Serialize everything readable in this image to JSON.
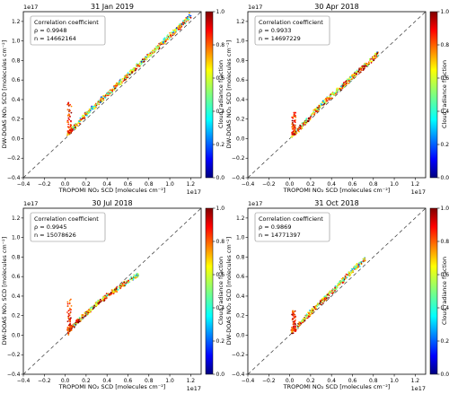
{
  "shared": {
    "xlabel": "TROPOMI NO₂ SCD [molecules cm⁻²]",
    "ylabel": "DW-DOAS NO₂ SCD [molecules cm⁻²]",
    "exponent_label": "1e17",
    "colorbar_label": "Cloud radiance fraction",
    "colorbar_ticks": [
      "0.0",
      "0.2",
      "0.4",
      "0.6",
      "0.8",
      "1.0"
    ],
    "stats_title": "Correlation coefficient",
    "x_ticks": [
      "−0.4",
      "−0.2",
      "0.0",
      "0.2",
      "0.4",
      "0.6",
      "0.8",
      "1.0",
      "1.2"
    ],
    "y_ticks": [
      "−0.4",
      "−0.2",
      "0.0",
      "0.2",
      "0.4",
      "0.6",
      "0.8",
      "1.0",
      "1.2"
    ],
    "colors": {
      "reference_line": "#333333"
    }
  },
  "chart_data": [
    {
      "type": "scatter",
      "title": "31 Jan 2019",
      "rho_text": "ρ = 0.9948",
      "n_text": "n = 14662164",
      "xlim": [
        -0.4,
        1.3
      ],
      "ylim": [
        -0.4,
        1.3
      ],
      "trend": [
        [
          0.02,
          0.03
        ],
        [
          0.1,
          0.13
        ],
        [
          0.2,
          0.25
        ],
        [
          0.4,
          0.45
        ],
        [
          0.6,
          0.65
        ],
        [
          0.8,
          0.85
        ],
        [
          1.0,
          1.05
        ],
        [
          1.1,
          1.15
        ],
        [
          1.2,
          1.27
        ]
      ],
      "spike": {
        "x": 0.04,
        "y_from": 0.05,
        "y_to": 0.37
      },
      "grid": false
    },
    {
      "type": "scatter",
      "title": "30 Apr 2018",
      "rho_text": "ρ = 0.9933",
      "n_text": "n = 14697229",
      "xlim": [
        -0.4,
        1.3
      ],
      "ylim": [
        -0.4,
        1.3
      ],
      "trend": [
        [
          0.02,
          0.03
        ],
        [
          0.1,
          0.11
        ],
        [
          0.2,
          0.23
        ],
        [
          0.3,
          0.34
        ],
        [
          0.4,
          0.44
        ],
        [
          0.6,
          0.63
        ],
        [
          0.8,
          0.82
        ],
        [
          0.85,
          0.88
        ]
      ],
      "spike": {
        "x": 0.04,
        "y_from": 0.04,
        "y_to": 0.27
      },
      "grid": false
    },
    {
      "type": "scatter",
      "title": "30 Jul 2018",
      "rho_text": "ρ = 0.9945",
      "n_text": "n = 15078626",
      "xlim": [
        -0.4,
        1.3
      ],
      "ylim": [
        -0.4,
        1.3
      ],
      "trend": [
        [
          0.02,
          0.02
        ],
        [
          0.1,
          0.12
        ],
        [
          0.2,
          0.22
        ],
        [
          0.3,
          0.32
        ],
        [
          0.4,
          0.4
        ],
        [
          0.6,
          0.55
        ],
        [
          0.7,
          0.62
        ]
      ],
      "spike": {
        "x": 0.04,
        "y_from": 0.04,
        "y_to": 0.37
      },
      "grid": false
    },
    {
      "type": "scatter",
      "title": "31 Oct 2018",
      "rho_text": "ρ = 0.9869",
      "n_text": "n = 14771397",
      "xlim": [
        -0.4,
        1.3
      ],
      "ylim": [
        -0.4,
        1.3
      ],
      "trend": [
        [
          0.02,
          0.03
        ],
        [
          0.1,
          0.12
        ],
        [
          0.2,
          0.23
        ],
        [
          0.3,
          0.34
        ],
        [
          0.4,
          0.44
        ],
        [
          0.5,
          0.55
        ],
        [
          0.6,
          0.66
        ],
        [
          0.72,
          0.78
        ]
      ],
      "spike": {
        "x": 0.04,
        "y_from": 0.04,
        "y_to": 0.25
      },
      "grid": false
    }
  ]
}
